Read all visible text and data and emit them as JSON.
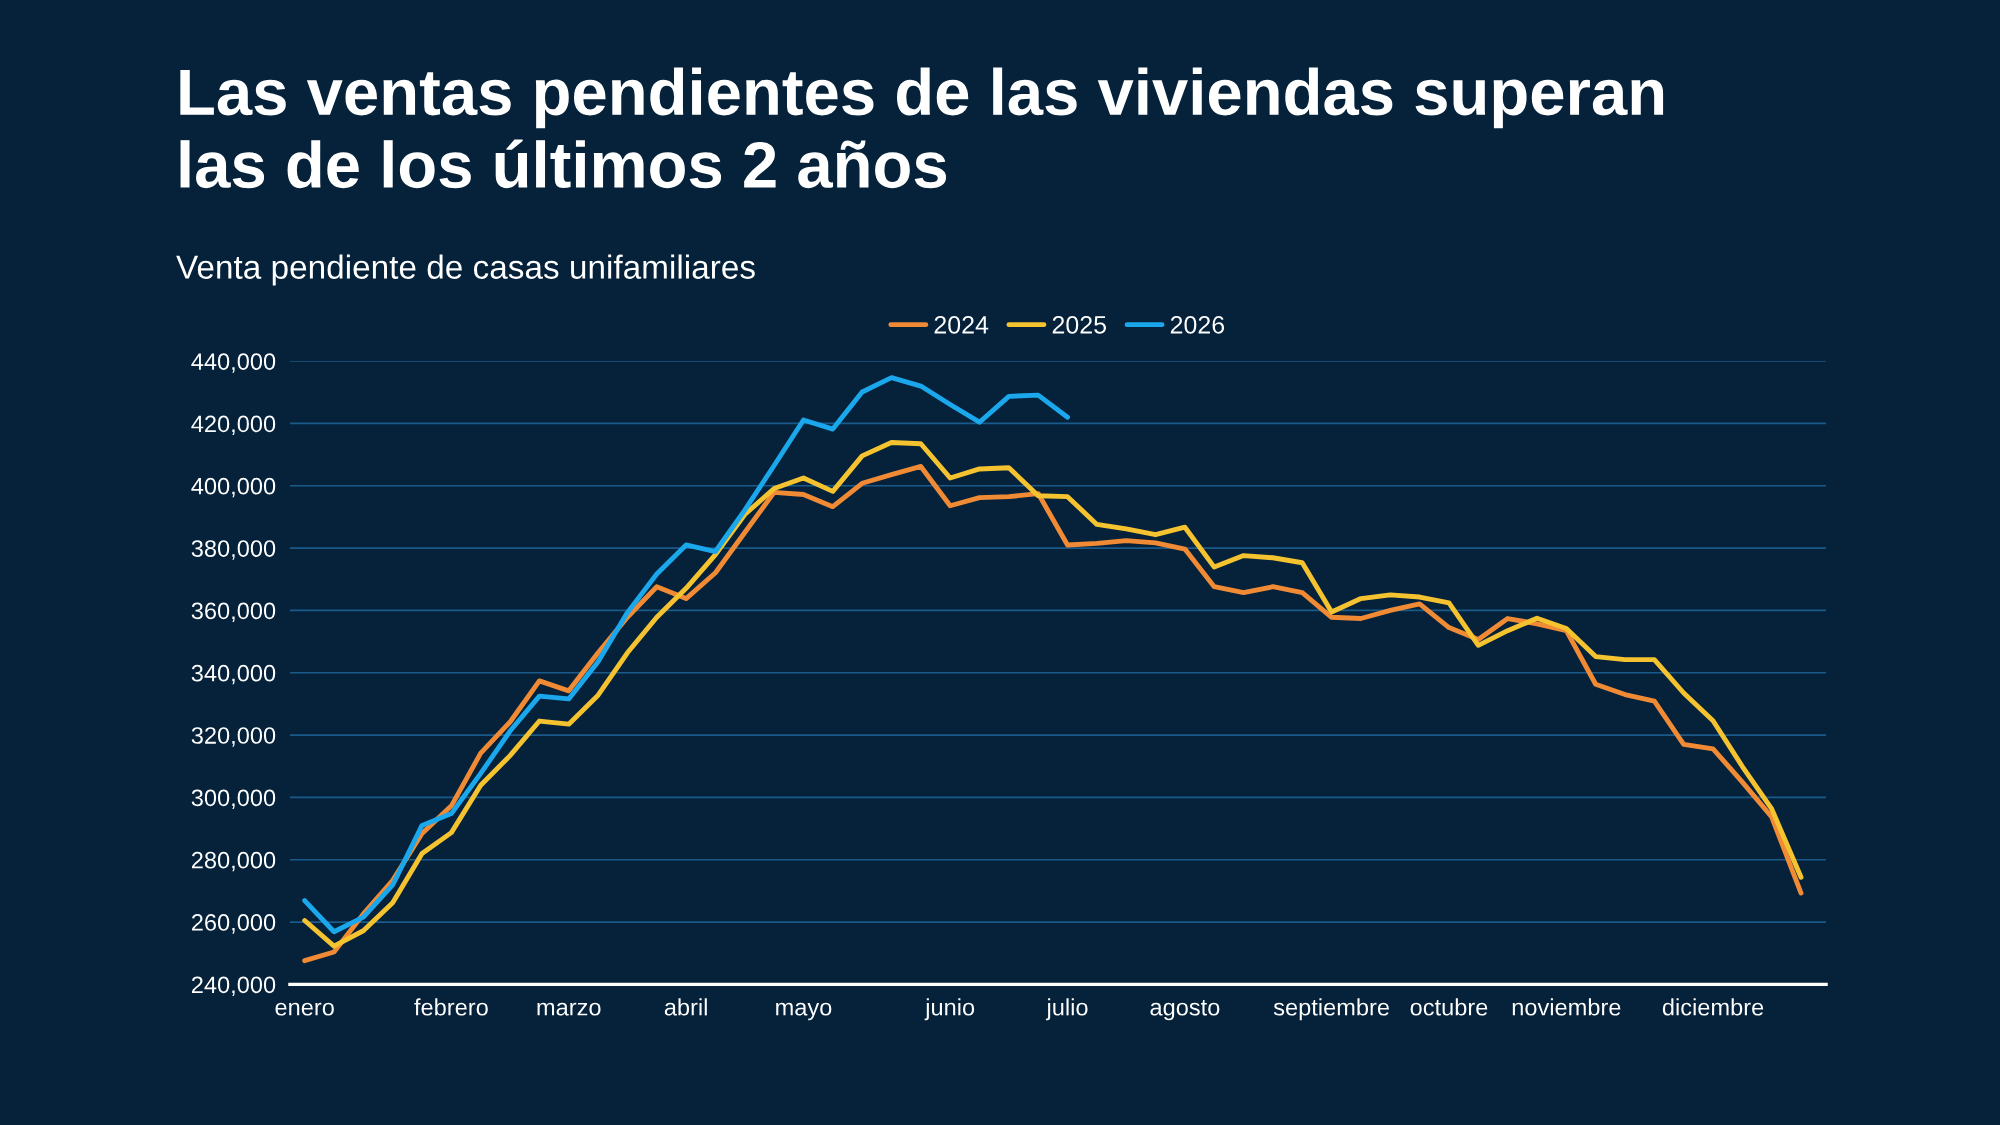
{
  "chart_data": {
    "type": "line",
    "title": "Las ventas pendientes de las viviendas superan\nlas de los últimos 2 años",
    "subtitle": "Venta pendiente de casas unifamiliares",
    "categories": [
      "enero",
      null,
      null,
      null,
      null,
      "febrero",
      null,
      null,
      null,
      "marzo",
      null,
      null,
      null,
      "abril",
      null,
      null,
      null,
      "mayo",
      null,
      null,
      null,
      null,
      "junio",
      null,
      null,
      null,
      "julio",
      null,
      null,
      null,
      "agosto",
      null,
      null,
      null,
      null,
      "septiembre",
      null,
      null,
      null,
      "octubre",
      null,
      null,
      null,
      "noviembre",
      null,
      null,
      null,
      null,
      "diciembre",
      null,
      null,
      null
    ],
    "series": [
      {
        "name": "2024",
        "color": "#f08a34",
        "values": [
          247600,
          250400,
          262600,
          273400,
          288400,
          297300,
          314200,
          324200,
          337400,
          334200,
          346400,
          357800,
          367600,
          363800,
          372100,
          385000,
          397900,
          397200,
          393300,
          400800,
          403600,
          406200,
          393600,
          396200,
          396500,
          397500,
          381000,
          381500,
          382400,
          381700,
          379700,
          367600,
          365700,
          367600,
          365700,
          357800,
          357400,
          360000,
          362100,
          354500,
          350700,
          357400,
          355700,
          353500,
          336300,
          333000,
          330900,
          317000,
          315600,
          304900,
          293700,
          269300
        ]
      },
      {
        "name": "2025",
        "color": "#f5c330",
        "values": [
          260500,
          252300,
          257200,
          266200,
          282000,
          288700,
          303900,
          313400,
          324500,
          323500,
          332800,
          346400,
          357800,
          367100,
          377900,
          390800,
          399100,
          402500,
          398200,
          409600,
          413900,
          413500,
          402500,
          405400,
          405800,
          396800,
          396500,
          387600,
          386200,
          384300,
          386700,
          373900,
          377600,
          376900,
          375300,
          359500,
          363800,
          365000,
          364300,
          362400,
          348800,
          353500,
          357500,
          354200,
          345200,
          344200,
          344200,
          333500,
          324600,
          309900,
          296300,
          274400
        ]
      },
      {
        "name": "2026",
        "color": "#1aa7ec",
        "values": [
          266900,
          256900,
          261600,
          271900,
          291000,
          294800,
          307700,
          321300,
          332500,
          331600,
          343500,
          359300,
          371700,
          381000,
          378900,
          392200,
          406500,
          421100,
          418200,
          430100,
          434700,
          432000,
          426100,
          420400,
          428700,
          429100,
          422000,
          null,
          null,
          null,
          null,
          null,
          null,
          null,
          null,
          null,
          null,
          null,
          null,
          null,
          null,
          null,
          null,
          null,
          null,
          null,
          null,
          null,
          null,
          null,
          null,
          null
        ]
      }
    ],
    "ylim": [
      240000,
      440000
    ],
    "yticks": [
      {
        "value": 240000,
        "label": "240,000"
      },
      {
        "value": 260000,
        "label": "260,000"
      },
      {
        "value": 280000,
        "label": "280,000"
      },
      {
        "value": 300000,
        "label": "300,000"
      },
      {
        "value": 320000,
        "label": "320,000"
      },
      {
        "value": 340000,
        "label": "340,000"
      },
      {
        "value": 360000,
        "label": "360,000"
      },
      {
        "value": 380000,
        "label": "380,000"
      },
      {
        "value": 400000,
        "label": "400,000"
      },
      {
        "value": 420000,
        "label": "420,000"
      },
      {
        "value": 440000,
        "label": "440,000"
      }
    ],
    "grid": "y",
    "legend": "top",
    "marker": "none",
    "line_style": "solid"
  }
}
